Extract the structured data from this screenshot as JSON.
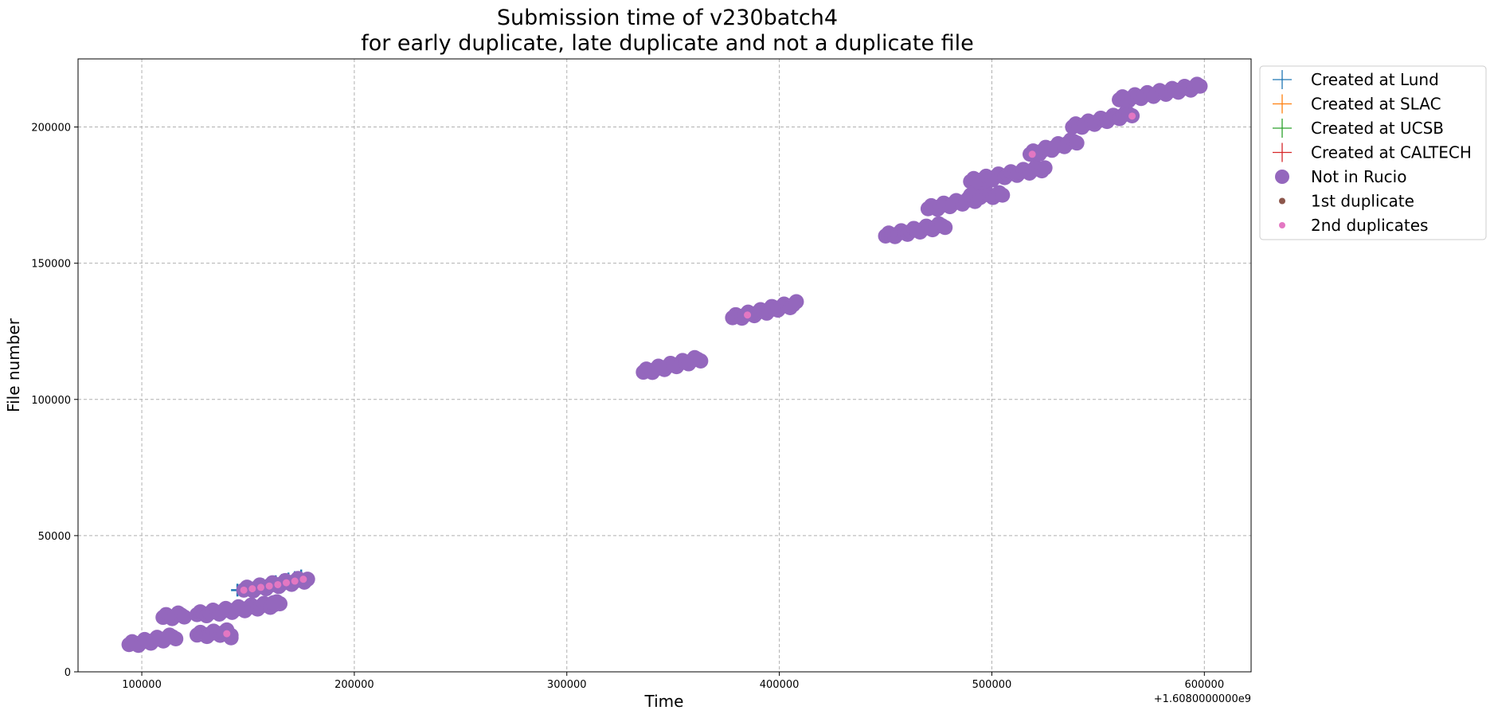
{
  "chart_data": {
    "type": "scatter",
    "title_line1": "Submission time of v230batch4",
    "title_line2": "for early duplicate, late duplicate and not a duplicate file",
    "xlabel": "Time",
    "ylabel": "File number",
    "x_offset_label": "+1.6080000000e9",
    "xlim": [
      70000,
      622000
    ],
    "ylim": [
      0,
      225000
    ],
    "x_ticks": [
      100000,
      200000,
      300000,
      400000,
      500000,
      600000
    ],
    "x_tick_labels": [
      "100000",
      "200000",
      "300000",
      "400000",
      "500000",
      "600000"
    ],
    "y_ticks": [
      0,
      50000,
      100000,
      150000,
      200000
    ],
    "y_tick_labels": [
      "0",
      "50000",
      "100000",
      "150000",
      "200000"
    ],
    "grid": true,
    "legend_position": "outside-top-right",
    "colors": {
      "lund": "#1f77b4",
      "slac": "#ff7f0e",
      "ucsb": "#2ca02c",
      "caltech": "#d62728",
      "not_in_rucio": "#9467bd",
      "first_duplicate": "#8c564b",
      "second_duplicates": "#e377c2"
    },
    "legend": [
      {
        "label": "Created at Lund",
        "marker": "plus",
        "color": "#1f77b4"
      },
      {
        "label": "Created at SLAC",
        "marker": "plus",
        "color": "#ff7f0e"
      },
      {
        "label": "Created at UCSB",
        "marker": "plus",
        "color": "#2ca02c"
      },
      {
        "label": "Created at CALTECH",
        "marker": "plus",
        "color": "#d62728"
      },
      {
        "label": "Not in Rucio",
        "marker": "big-dot",
        "color": "#9467bd"
      },
      {
        "label": "1st duplicate",
        "marker": "small-dot",
        "color": "#8c564b"
      },
      {
        "label": "2nd duplicates",
        "marker": "small-dot",
        "color": "#e377c2"
      }
    ],
    "series": [
      {
        "name": "Created at Lund",
        "color": "#1f77b4",
        "marker": "plus",
        "x": [
          145000,
          148000,
          151000,
          154000,
          157000,
          160000,
          163000,
          166000,
          169000,
          172000,
          175000,
          178000
        ],
        "y": [
          30000,
          30500,
          31000,
          31500,
          32000,
          32600,
          33100,
          33600,
          34100,
          34600,
          35200,
          34200
        ]
      },
      {
        "name": "Not in Rucio",
        "color": "#9467bd",
        "marker": "big-dot",
        "segments": [
          {
            "x": [
              94000,
              116000
            ],
            "y": [
              10000,
              13000
            ]
          },
          {
            "x": [
              110000,
              120000
            ],
            "y": [
              20000,
              21000
            ]
          },
          {
            "x": [
              126000,
              165000
            ],
            "y": [
              21000,
              25000
            ]
          },
          {
            "x": [
              126000,
              140000
            ],
            "y": [
              13500,
              14500
            ]
          },
          {
            "x": [
              142000,
              142000
            ],
            "y": [
              12500,
              12500
            ]
          },
          {
            "x": [
              148000,
              178000
            ],
            "y": [
              30000,
              34000
            ]
          },
          {
            "x": [
              162000,
              162000
            ],
            "y": [
              24500,
              24500
            ]
          },
          {
            "x": [
              336000,
              363000
            ],
            "y": [
              110000,
              115000
            ]
          },
          {
            "x": [
              378000,
              397000
            ],
            "y": [
              130000,
              133000
            ]
          },
          {
            "x": [
              395000,
              408000
            ],
            "y": [
              133000,
              135000
            ]
          },
          {
            "x": [
              450000,
              478000
            ],
            "y": [
              160000,
              164000
            ]
          },
          {
            "x": [
              470000,
              495000
            ],
            "y": [
              170000,
              174000
            ]
          },
          {
            "x": [
              490000,
              505000
            ],
            "y": [
              175000,
              175000
            ]
          },
          {
            "x": [
              490000,
              525000
            ],
            "y": [
              180000,
              185000
            ]
          },
          {
            "x": [
              518000,
              540000
            ],
            "y": [
              190000,
              195000
            ]
          },
          {
            "x": [
              538000,
              566000
            ],
            "y": [
              200000,
              205000
            ]
          },
          {
            "x": [
              560000,
              598000
            ],
            "y": [
              210000,
              215000
            ]
          }
        ]
      },
      {
        "name": "2nd duplicates",
        "color": "#e377c2",
        "marker": "small-dot",
        "x": [
          148000,
          152000,
          156000,
          160000,
          164000,
          168000,
          172000,
          176000,
          140000,
          385000,
          519000,
          566000
        ],
        "y": [
          30000,
          30500,
          31000,
          31500,
          32000,
          32700,
          33300,
          34000,
          14000,
          131000,
          190000,
          204000
        ]
      }
    ]
  }
}
